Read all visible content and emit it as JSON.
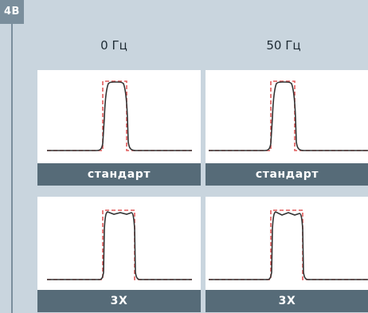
{
  "badge": "4B",
  "columns": [
    {
      "header": "0 Гц"
    },
    {
      "header": "50 Гц"
    }
  ],
  "panels": [
    {
      "caption": "стандарт"
    },
    {
      "caption": "стандарт"
    },
    {
      "caption": "3X"
    },
    {
      "caption": "3X"
    }
  ],
  "colors": {
    "background": "#c9d5de",
    "accent": "#7a8e9c",
    "caption_bar": "#566b78",
    "measured_curve": "#333333",
    "reference_curve": "#e05a5a"
  }
}
